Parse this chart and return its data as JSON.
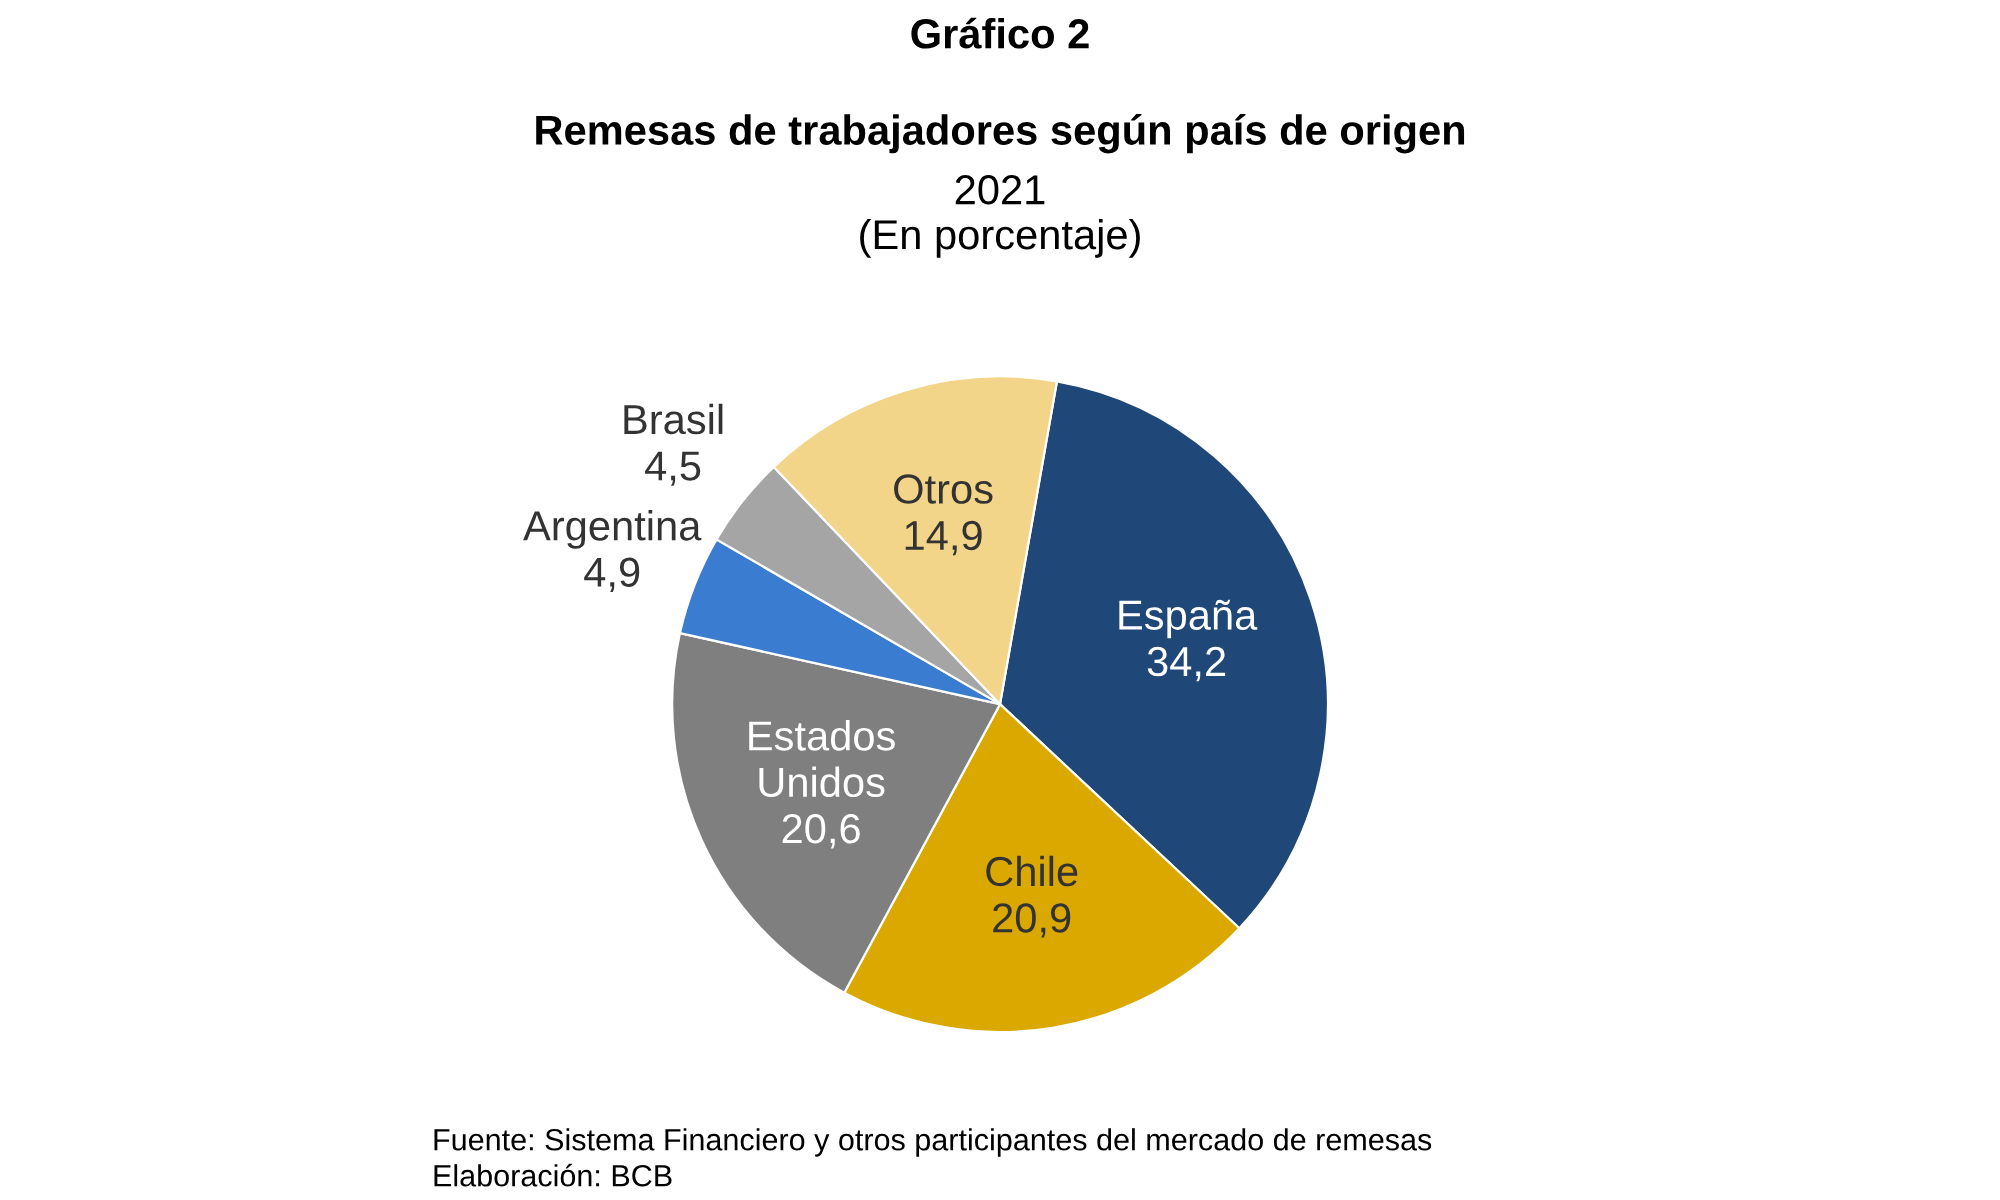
{
  "chart_data": {
    "type": "pie",
    "title": "Remesas de trabajadores según país de origen",
    "subtitle": "2021\n(En porcentaje)",
    "categories": [
      "España",
      "Chile",
      "Estados\nUnidos",
      "Argentina",
      "Brasil",
      "Otros"
    ],
    "values": [
      34.2,
      20.9,
      20.6,
      4.9,
      4.5,
      14.9
    ],
    "value_labels": [
      "34,2",
      "20,9",
      "20,6",
      "4,9",
      "4,5",
      "14,9"
    ],
    "colors": [
      "#1f4878",
      "#dba800",
      "#7f7f7f",
      "#3a7ccf",
      "#a5a5a5",
      "#f3d589"
    ],
    "annotations": [
      "Gráfico 2",
      "Fuente: Sistema Financiero y otros participantes del mercado de remesas",
      "Elaboración: BCB"
    ]
  }
}
